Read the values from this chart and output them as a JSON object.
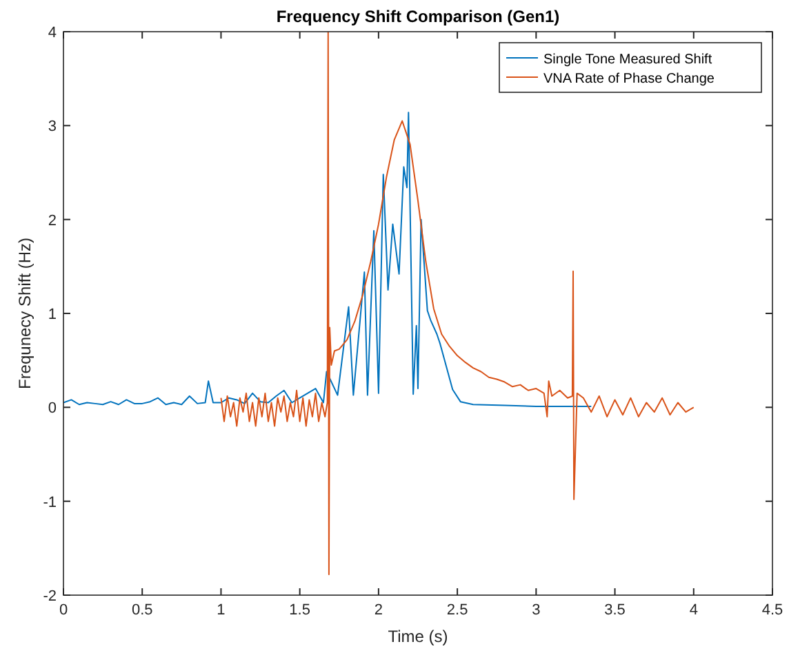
{
  "chart_data": {
    "type": "line",
    "title": "Frequency Shift Comparison (Gen1)",
    "xlabel": "Time (s)",
    "ylabel": "Frequnecy Shift (Hz)",
    "xlim": [
      0,
      4.5
    ],
    "ylim": [
      -2,
      4
    ],
    "xticks": [
      0,
      0.5,
      1,
      1.5,
      2,
      2.5,
      3,
      3.5,
      4,
      4.5
    ],
    "yticks": [
      -2,
      -1,
      0,
      1,
      2,
      3,
      4
    ],
    "grid": false,
    "legend": "top right",
    "series": [
      {
        "name": "Single Tone Measured Shift",
        "color": "#0072bd",
        "x": [
          0,
          0.05,
          0.1,
          0.15,
          0.2,
          0.25,
          0.3,
          0.35,
          0.4,
          0.45,
          0.5,
          0.55,
          0.6,
          0.65,
          0.7,
          0.75,
          0.8,
          0.85,
          0.9,
          0.92,
          0.95,
          1.0,
          1.05,
          1.1,
          1.15,
          1.2,
          1.25,
          1.3,
          1.35,
          1.4,
          1.45,
          1.5,
          1.55,
          1.6,
          1.65,
          1.67,
          1.74,
          1.81,
          1.84,
          1.91,
          1.93,
          1.97,
          2.0,
          2.03,
          2.06,
          2.09,
          2.13,
          2.16,
          2.18,
          2.19,
          2.22,
          2.24,
          2.25,
          2.27,
          2.31,
          2.33,
          2.37,
          2.39,
          2.47,
          2.52,
          2.6,
          2.8,
          3.0,
          3.2,
          3.35
        ],
        "values": [
          0.05,
          0.08,
          0.03,
          0.05,
          0.04,
          0.03,
          0.06,
          0.03,
          0.08,
          0.04,
          0.04,
          0.06,
          0.1,
          0.03,
          0.05,
          0.03,
          0.12,
          0.04,
          0.05,
          0.28,
          0.05,
          0.05,
          0.1,
          0.08,
          0.04,
          0.15,
          0.06,
          0.05,
          0.12,
          0.18,
          0.05,
          0.1,
          0.15,
          0.2,
          0.05,
          0.38,
          0.13,
          1.07,
          0.13,
          1.44,
          0.13,
          1.88,
          0.15,
          2.48,
          1.25,
          1.95,
          1.42,
          2.56,
          2.34,
          3.14,
          0.14,
          0.87,
          0.2,
          2.0,
          1.03,
          0.93,
          0.78,
          0.68,
          0.19,
          0.06,
          0.03,
          0.02,
          0.01,
          0.01,
          0.01
        ]
      },
      {
        "name": "VNA Rate of Phase Change",
        "color": "#d95319",
        "x": [
          1.0,
          1.02,
          1.04,
          1.06,
          1.08,
          1.1,
          1.12,
          1.14,
          1.16,
          1.18,
          1.2,
          1.22,
          1.24,
          1.26,
          1.28,
          1.3,
          1.32,
          1.34,
          1.36,
          1.38,
          1.4,
          1.42,
          1.44,
          1.46,
          1.48,
          1.5,
          1.52,
          1.54,
          1.56,
          1.58,
          1.6,
          1.62,
          1.64,
          1.66,
          1.675,
          1.68,
          1.685,
          1.69,
          1.7,
          1.72,
          1.75,
          1.8,
          1.85,
          1.9,
          1.95,
          2.0,
          2.05,
          2.1,
          2.15,
          2.2,
          2.25,
          2.3,
          2.35,
          2.4,
          2.45,
          2.5,
          2.55,
          2.6,
          2.65,
          2.7,
          2.75,
          2.8,
          2.85,
          2.9,
          2.95,
          3.0,
          3.05,
          3.07,
          3.08,
          3.1,
          3.15,
          3.2,
          3.23,
          3.235,
          3.24,
          3.26,
          3.3,
          3.35,
          3.4,
          3.45,
          3.5,
          3.55,
          3.6,
          3.65,
          3.7,
          3.75,
          3.8,
          3.85,
          3.9,
          3.95,
          4.0
        ],
        "values": [
          0.1,
          -0.15,
          0.12,
          -0.1,
          0.05,
          -0.2,
          0.1,
          -0.05,
          0.15,
          -0.15,
          0.05,
          -0.2,
          0.1,
          -0.1,
          0.15,
          -0.15,
          0.05,
          -0.2,
          0.1,
          -0.05,
          0.12,
          -0.15,
          0.05,
          -0.1,
          0.18,
          -0.15,
          0.1,
          -0.2,
          0.08,
          -0.1,
          0.15,
          -0.15,
          0.05,
          -0.1,
          0.05,
          4.0,
          -1.78,
          0.85,
          0.45,
          0.6,
          0.62,
          0.72,
          0.92,
          1.2,
          1.55,
          1.95,
          2.45,
          2.85,
          3.05,
          2.8,
          2.2,
          1.55,
          1.05,
          0.78,
          0.65,
          0.55,
          0.48,
          0.42,
          0.38,
          0.32,
          0.3,
          0.27,
          0.22,
          0.24,
          0.18,
          0.2,
          0.15,
          -0.1,
          0.28,
          0.12,
          0.18,
          0.1,
          0.12,
          1.45,
          -0.98,
          0.15,
          0.1,
          -0.05,
          0.12,
          -0.1,
          0.08,
          -0.08,
          0.1,
          -0.1,
          0.05,
          -0.05,
          0.1,
          -0.08,
          0.05,
          -0.05,
          0.0
        ]
      }
    ]
  }
}
